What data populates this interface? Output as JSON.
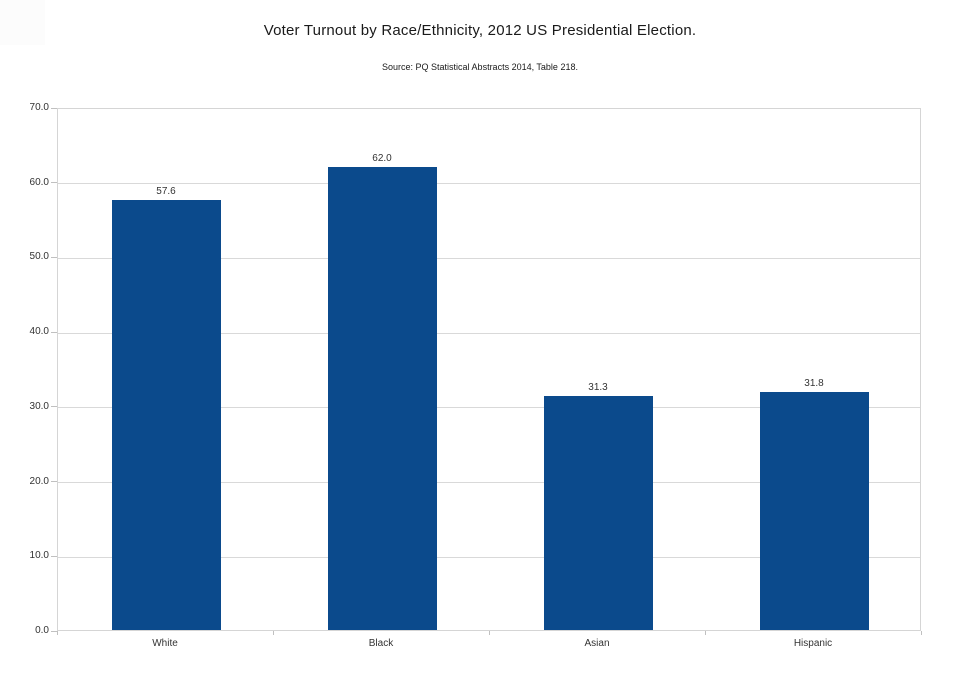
{
  "header": {
    "title": "Voter Turnout by Race/Ethnicity, 2012 US Presidential Election.",
    "subtitle": "Source: PQ Statistical Abstracts 2014, Table 218."
  },
  "chart_data": {
    "type": "bar",
    "title": "Voter Turnout by Race/Ethnicity, 2012 US Presidential Election.",
    "subtitle": "Source: PQ Statistical Abstracts 2014, Table 218.",
    "categories": [
      "White",
      "Black",
      "Asian",
      "Hispanic"
    ],
    "values": [
      57.6,
      62.0,
      31.3,
      31.8
    ],
    "data_labels": [
      "57.6",
      "62.0",
      "31.3",
      "31.8"
    ],
    "xlabel": "",
    "ylabel": "",
    "ylim": [
      0,
      70
    ],
    "ytick_interval": 10,
    "ytick_labels": [
      "0.0",
      "10.0",
      "20.0",
      "30.0",
      "40.0",
      "50.0",
      "60.0",
      "70.0"
    ],
    "grid": true,
    "legend_position": "none",
    "bar_color": "#0b4a8c",
    "grid_color": "#d9d9d9",
    "plot_border_color": "#d5d5d5",
    "axis_text_color": "#333333",
    "title_color": "#1a1a1a"
  }
}
